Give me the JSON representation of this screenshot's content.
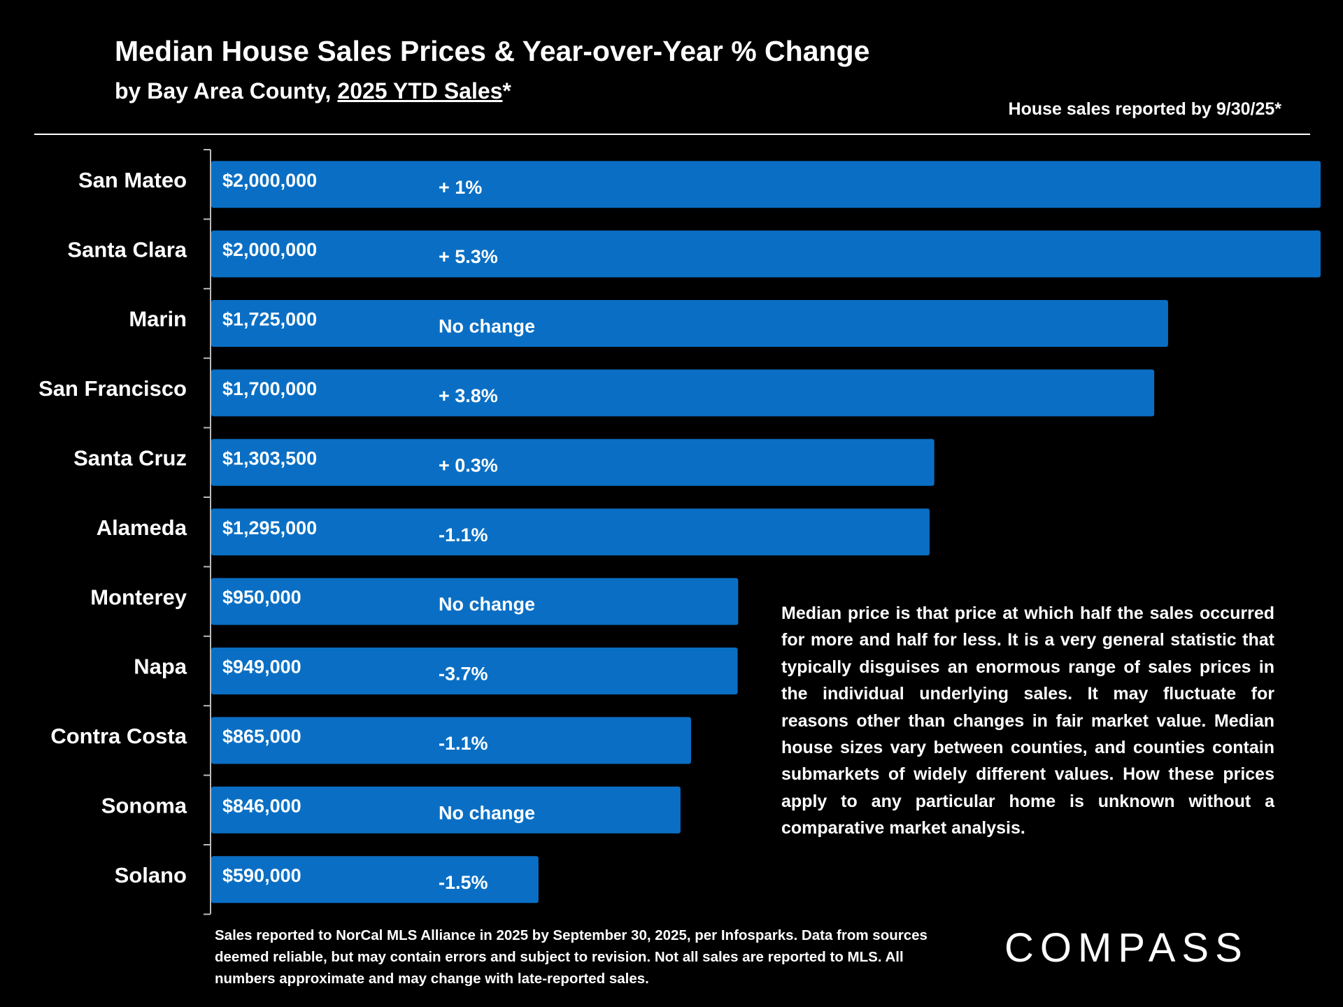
{
  "chart_data": {
    "type": "hbar",
    "title": "Median House Sales Prices & Year-over-Year % Change",
    "subtitle": "by Bay Area County,",
    "subtitle_underlined": "2025 YTD Sales",
    "subtitle_suffix": "*",
    "date_note": "House sales reported by 9/30/25*",
    "categories": [
      "San Mateo",
      "Santa Clara",
      "Marin",
      "San Francisco",
      "Santa Cruz",
      "Alameda",
      "Monterey",
      "Napa",
      "Contra Costa",
      "Sonoma",
      "Solano"
    ],
    "values": [
      2000000,
      2000000,
      1725000,
      1700000,
      1303500,
      1295000,
      950000,
      949000,
      865000,
      846000,
      590000
    ],
    "value_labels": [
      "$2,000,000",
      "$2,000,000",
      "$1,725,000",
      "$1,700,000",
      "$1,303,500",
      "$1,295,000",
      "$950,000",
      "$949,000",
      "$865,000",
      "$846,000",
      "$590,000"
    ],
    "yoy_change": [
      "+ 1%",
      "+ 5.3%",
      "No change",
      "+ 3.8%",
      "+ 0.3%",
      "-1.1%",
      "No change",
      "-3.7%",
      "-1.1%",
      "No change",
      "-1.5%"
    ],
    "color": "#0a6fc4",
    "xlim": [
      0,
      2000000
    ],
    "note": "Median price is that price at which half the sales occurred for more and half for less. It is a very general statistic that typically disguises an enormous range of sales prices in the individual underlying sales. It may fluctuate for reasons other than changes in fair market value. Median house sizes vary between counties, and counties contain submarkets of widely different values. How these prices apply to any particular home is unknown without a comparative market analysis.",
    "footnote": "Sales reported to NorCal MLS Alliance in 2025 by September 30, 2025, per Infosparks. Data from sources deemed reliable, but may contain errors and subject to revision. Not all sales are reported to MLS. All numbers approximate and may change with late-reported sales.",
    "brand": "COMPASS"
  }
}
